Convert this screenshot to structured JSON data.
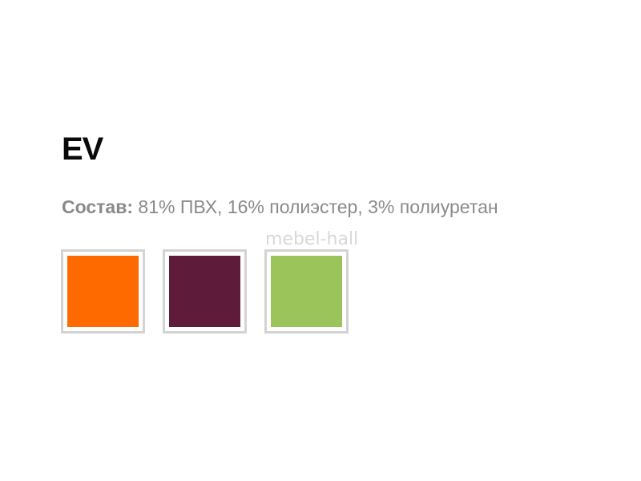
{
  "title": "EV",
  "composition": {
    "label": "Состав:",
    "value": "81% ПВХ, 16% полиэстер, 3% полиуретан"
  },
  "watermark": "mebel-hall",
  "swatches": [
    {
      "color": "#ff6a00"
    },
    {
      "color": "#5e1c3a"
    },
    {
      "color": "#9bc45a"
    }
  ]
}
